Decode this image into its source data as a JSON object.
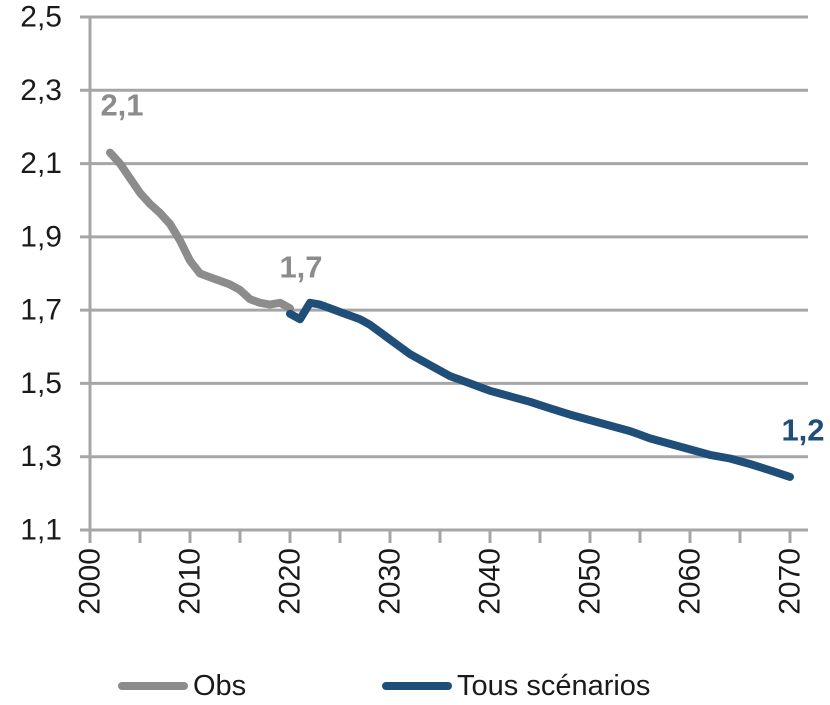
{
  "chart_data": {
    "type": "line",
    "grid": true,
    "decimal_style": "comma",
    "x_axis": {
      "min": 2000,
      "max": 2070,
      "labeled_tick_step": 10,
      "minor_tick_step": 5,
      "tick_labels": [
        "2000",
        "2010",
        "2020",
        "2030",
        "2040",
        "2050",
        "2060",
        "2070"
      ],
      "label_rotation_deg": -90
    },
    "y_axis": {
      "min": 1.1,
      "max": 2.5,
      "tick_step": 0.2,
      "tick_labels": [
        "1,1",
        "1,3",
        "1,5",
        "1,7",
        "1,9",
        "2,1",
        "2,3",
        "2,5"
      ]
    },
    "colors": {
      "grid": "#A6A6A6",
      "axis": "#A6A6A6",
      "axis_text": "#1a1a1a",
      "obs": "#8C8C8C",
      "scenarios": "#1F4E79"
    },
    "series": [
      {
        "name": "Obs",
        "color": "#8C8C8C",
        "points": [
          [
            2002,
            2.13
          ],
          [
            2003,
            2.1
          ],
          [
            2004,
            2.06
          ],
          [
            2005,
            2.02
          ],
          [
            2006,
            1.99
          ],
          [
            2007,
            1.965
          ],
          [
            2008,
            1.935
          ],
          [
            2009,
            1.89
          ],
          [
            2010,
            1.835
          ],
          [
            2011,
            1.8
          ],
          [
            2012,
            1.79
          ],
          [
            2013,
            1.78
          ],
          [
            2014,
            1.77
          ],
          [
            2015,
            1.755
          ],
          [
            2016,
            1.73
          ],
          [
            2017,
            1.72
          ],
          [
            2018,
            1.715
          ],
          [
            2019,
            1.72
          ],
          [
            2020,
            1.705
          ]
        ]
      },
      {
        "name": "Tous scénarios",
        "color": "#1F4E79",
        "points": [
          [
            2020,
            1.69
          ],
          [
            2021,
            1.675
          ],
          [
            2022,
            1.72
          ],
          [
            2023,
            1.715
          ],
          [
            2024,
            1.705
          ],
          [
            2025,
            1.695
          ],
          [
            2026,
            1.685
          ],
          [
            2027,
            1.675
          ],
          [
            2028,
            1.66
          ],
          [
            2029,
            1.64
          ],
          [
            2030,
            1.62
          ],
          [
            2031,
            1.6
          ],
          [
            2032,
            1.58
          ],
          [
            2033,
            1.565
          ],
          [
            2034,
            1.55
          ],
          [
            2035,
            1.535
          ],
          [
            2036,
            1.52
          ],
          [
            2037,
            1.51
          ],
          [
            2038,
            1.5
          ],
          [
            2039,
            1.49
          ],
          [
            2040,
            1.48
          ],
          [
            2042,
            1.465
          ],
          [
            2044,
            1.45
          ],
          [
            2046,
            1.432
          ],
          [
            2048,
            1.415
          ],
          [
            2050,
            1.4
          ],
          [
            2052,
            1.385
          ],
          [
            2054,
            1.37
          ],
          [
            2056,
            1.35
          ],
          [
            2058,
            1.335
          ],
          [
            2060,
            1.32
          ],
          [
            2062,
            1.305
          ],
          [
            2064,
            1.295
          ],
          [
            2066,
            1.28
          ],
          [
            2068,
            1.263
          ],
          [
            2070,
            1.245
          ]
        ]
      }
    ],
    "annotations": [
      {
        "text": "2,1",
        "x": 2003.2,
        "y": 2.26,
        "color": "#8C8C8C"
      },
      {
        "text": "1,7",
        "x": 2021.1,
        "y": 1.818,
        "color": "#8C8C8C"
      },
      {
        "text": "1,2",
        "x": 2071.3,
        "y": 1.373,
        "color": "#1F4E79"
      }
    ],
    "legend": {
      "position": "bottom",
      "entries": [
        {
          "label": "Obs",
          "color": "#8C8C8C"
        },
        {
          "label": "Tous scénarios",
          "color": "#1F4E79"
        }
      ]
    }
  }
}
